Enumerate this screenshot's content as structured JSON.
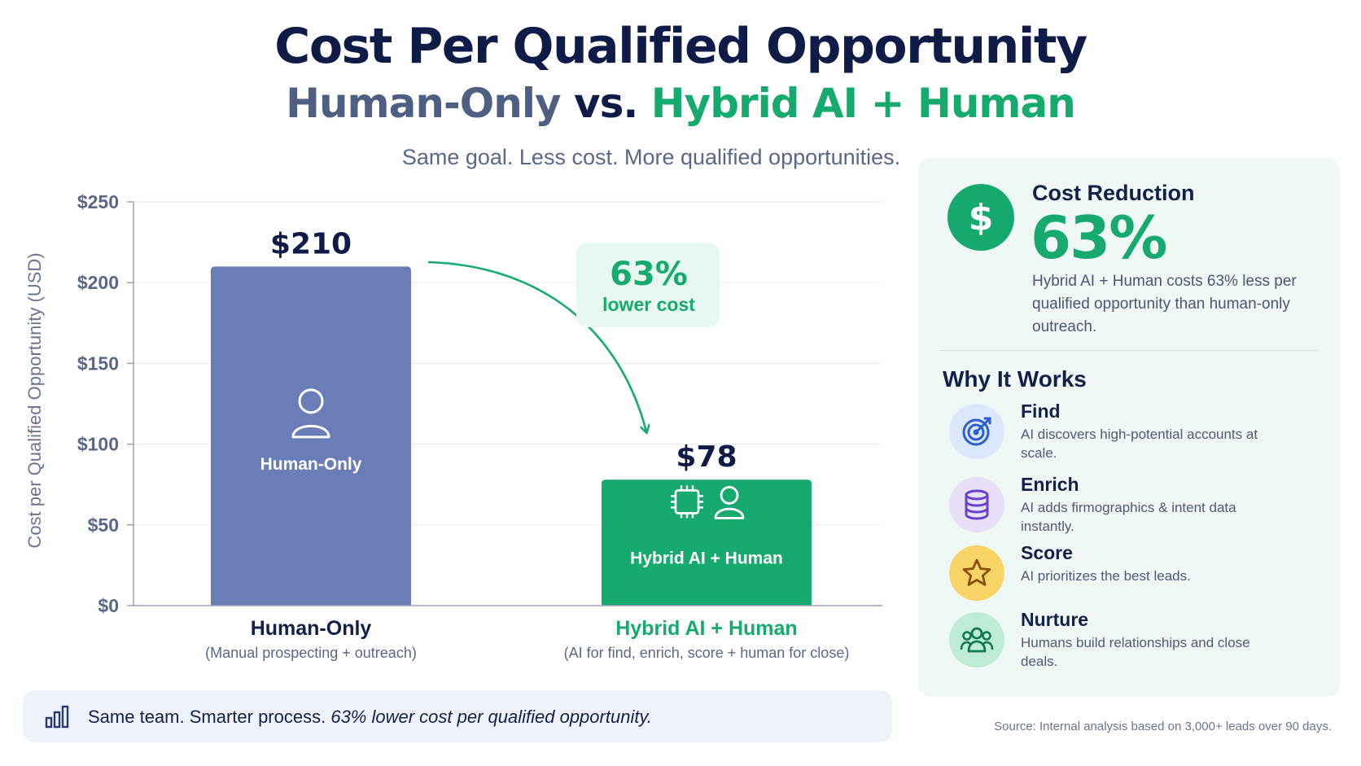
{
  "header": {
    "title": "Cost Per Qualified Opportunity",
    "subtitle_part1": "Human-Only",
    "subtitle_vs": " vs. ",
    "subtitle_part2": "Hybrid AI + Human",
    "tagline": "Same goal. Less cost. More qualified opportunities."
  },
  "colors": {
    "human_bar": "#6a7db6",
    "hybrid_bar": "#16aa6e",
    "accent_green": "#16aa6e",
    "navy": "#13204a"
  },
  "chart_data": {
    "type": "bar",
    "ylabel": "Cost per Qualified Opportunity (USD)",
    "ylim": [
      0,
      250
    ],
    "yticks": [
      0,
      50,
      100,
      150,
      200,
      250
    ],
    "ytick_labels": [
      "$0",
      "$50",
      "$100",
      "$150",
      "$200",
      "$250"
    ],
    "grid": true,
    "categories": [
      "Human-Only",
      "Hybrid AI + Human"
    ],
    "category_sublabels": [
      "(Manual prospecting + outreach)",
      "(AI for find, enrich, score + human for close)"
    ],
    "values": [
      210,
      78
    ],
    "value_labels": [
      "$210",
      "$78"
    ],
    "bar_inner_labels": [
      "Human-Only",
      "Hybrid AI + Human"
    ],
    "bar_icons": [
      "person-icon",
      "ai-chip-person-icon"
    ],
    "annotation": {
      "value": "63%",
      "text": "lower cost"
    }
  },
  "panel": {
    "badge_icon": "dollar-icon",
    "badge_glyph": "$",
    "cost_reduction_title": "Cost Reduction",
    "cost_reduction_value": "63%",
    "cost_reduction_desc": "Hybrid AI + Human costs 63% less per qualified opportunity than human-only outreach.",
    "why_title": "Why It Works",
    "steps": [
      {
        "icon": "target-icon",
        "title": "Find",
        "desc": "AI discovers high-potential accounts at scale."
      },
      {
        "icon": "database-icon",
        "title": "Enrich",
        "desc": "AI adds firmographics & intent data instantly."
      },
      {
        "icon": "star-icon",
        "title": "Score",
        "desc": "AI prioritizes the best leads."
      },
      {
        "icon": "people-icon",
        "title": "Nurture",
        "desc": "Humans build relationships and close deals."
      }
    ]
  },
  "footer": {
    "icon": "bar-chart-icon",
    "summary_prefix": "Same team. Smarter process. ",
    "summary_emphasis": "63% lower cost per qualified opportunity.",
    "source": "Source: Internal analysis based on 3,000+ leads over 90 days."
  }
}
